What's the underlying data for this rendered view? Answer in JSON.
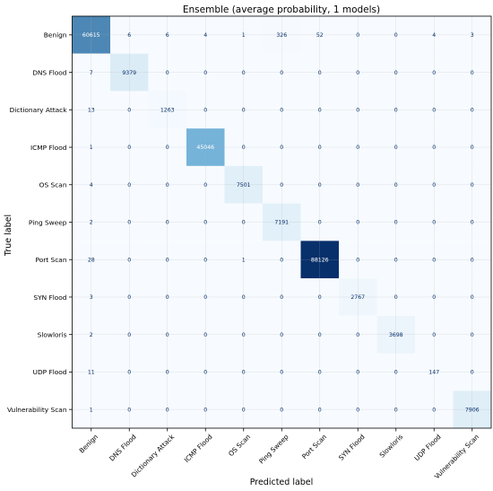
{
  "chart_data": {
    "type": "heatmap",
    "title": "Ensemble (average probability, 1 models)",
    "xlabel": "Predicted label",
    "ylabel": "True label",
    "labels": [
      "Benign",
      "DNS Flood",
      "Dictionary Attack",
      "ICMP Flood",
      "OS Scan",
      "Ping Sweep",
      "Port Scan",
      "SYN Flood",
      "Slowloris",
      "UDP Flood",
      "Vulnerability Scan"
    ],
    "matrix": [
      [
        60615,
        6,
        6,
        4,
        1,
        326,
        52,
        0,
        0,
        4,
        3
      ],
      [
        7,
        9379,
        0,
        0,
        0,
        0,
        0,
        0,
        0,
        0,
        0
      ],
      [
        13,
        0,
        1263,
        0,
        0,
        0,
        0,
        0,
        0,
        0,
        0
      ],
      [
        1,
        0,
        0,
        45046,
        0,
        0,
        0,
        0,
        0,
        0,
        0
      ],
      [
        4,
        0,
        0,
        0,
        7501,
        0,
        0,
        0,
        0,
        0,
        0
      ],
      [
        2,
        0,
        0,
        0,
        0,
        7191,
        0,
        0,
        0,
        0,
        0
      ],
      [
        28,
        0,
        0,
        0,
        1,
        0,
        88126,
        0,
        0,
        0,
        0
      ],
      [
        3,
        0,
        0,
        0,
        0,
        0,
        0,
        2767,
        0,
        0,
        0
      ],
      [
        2,
        0,
        0,
        0,
        0,
        0,
        0,
        0,
        3698,
        0,
        0
      ],
      [
        11,
        0,
        0,
        0,
        0,
        0,
        0,
        0,
        0,
        147,
        0
      ],
      [
        1,
        0,
        0,
        0,
        0,
        0,
        0,
        0,
        0,
        0,
        7906
      ]
    ],
    "colormap": "Blues",
    "grid": true,
    "colors": {
      "low": "#f7fbff",
      "mid": "#6baed6",
      "high": "#08306b",
      "text_dark": "#08306b",
      "text_light": "#ffffff"
    }
  }
}
